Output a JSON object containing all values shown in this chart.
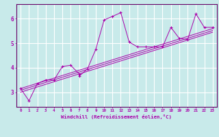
{
  "background_color": "#c8eaea",
  "line_color": "#aa00aa",
  "x_label": "Windchill (Refroidissement éolien,°C)",
  "xlim": [
    -0.5,
    23.5
  ],
  "ylim": [
    2.4,
    6.6
  ],
  "yticks": [
    3,
    4,
    5,
    6
  ],
  "xticks": [
    0,
    1,
    2,
    3,
    4,
    5,
    6,
    7,
    8,
    9,
    10,
    11,
    12,
    13,
    14,
    15,
    16,
    17,
    18,
    19,
    20,
    21,
    22,
    23
  ],
  "series": [
    [
      0,
      3.15
    ],
    [
      1,
      2.65
    ],
    [
      2,
      3.35
    ],
    [
      3,
      3.5
    ],
    [
      4,
      3.5
    ],
    [
      5,
      4.05
    ],
    [
      6,
      4.1
    ],
    [
      7,
      3.75
    ],
    [
      7,
      3.65
    ],
    [
      8,
      3.95
    ],
    [
      9,
      4.75
    ],
    [
      10,
      5.95
    ],
    [
      11,
      6.1
    ],
    [
      12,
      6.25
    ],
    [
      13,
      5.05
    ],
    [
      14,
      4.85
    ],
    [
      15,
      4.85
    ],
    [
      16,
      4.85
    ],
    [
      17,
      4.85
    ],
    [
      18,
      5.65
    ],
    [
      19,
      5.2
    ],
    [
      20,
      5.15
    ],
    [
      21,
      6.2
    ],
    [
      22,
      5.65
    ],
    [
      23,
      5.65
    ]
  ],
  "regression_lines": [
    [
      [
        0,
        3.0
      ],
      [
        23,
        5.45
      ]
    ],
    [
      [
        0,
        3.15
      ],
      [
        23,
        5.6
      ]
    ],
    [
      [
        0,
        3.08
      ],
      [
        23,
        5.52
      ]
    ]
  ]
}
